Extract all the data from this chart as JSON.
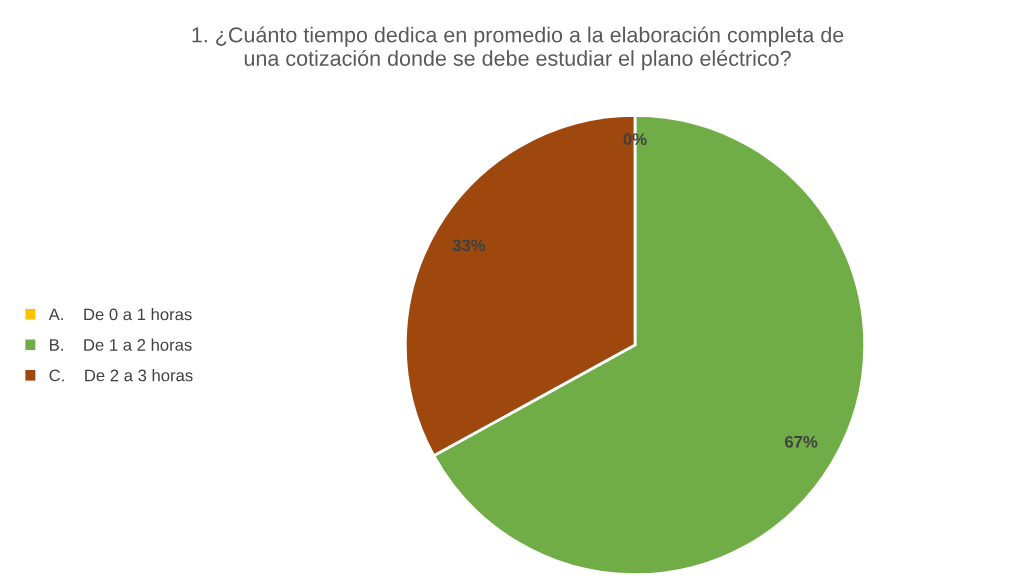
{
  "chart_data": {
    "type": "pie",
    "title": "1. ¿Cuánto tiempo dedica en promedio a la elaboración completa de\nuna cotización donde se debe estudiar el plano eléctrico?",
    "categories": [
      "A.    De 0 a 1 horas",
      "B.    De 1 a 2 horas",
      "C.    De 2 a 3 horas"
    ],
    "values": [
      0,
      67,
      33
    ],
    "colors": [
      "#ffc000",
      "#70ad47",
      "#9e480e"
    ],
    "value_labels": [
      "0%",
      "67%",
      "33%"
    ],
    "legend": "left"
  }
}
